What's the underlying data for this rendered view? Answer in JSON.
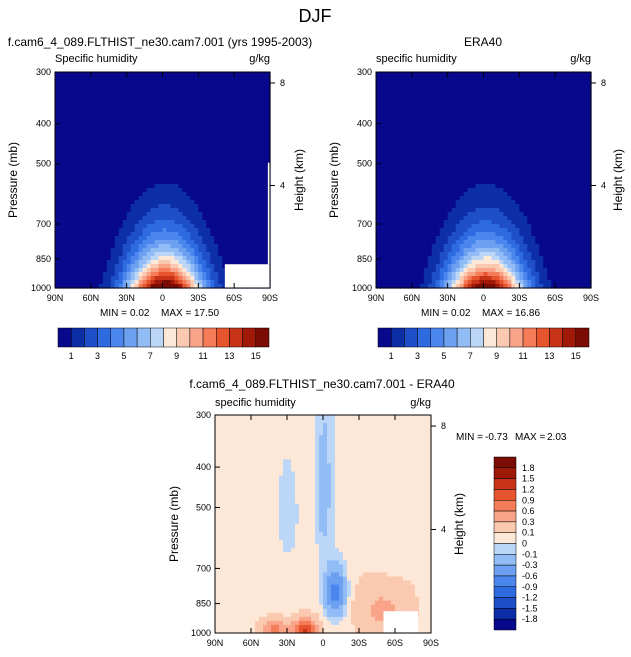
{
  "figure": {
    "title": "DJF"
  },
  "chart_data": [
    {
      "type": "contour",
      "title": "f.cam6_4_089.FLTHIST_ne30.cam7.001 (yrs 1995-2003)",
      "variable": "Specific humidity",
      "units": "g/kg",
      "xlabel": "",
      "ylabel": "Pressure (mb)",
      "ylabel_right": "Height (km)",
      "x_ticks": [
        "90N",
        "60N",
        "30N",
        "0",
        "30S",
        "60S",
        "90S"
      ],
      "y_ticks": [
        "300",
        "400",
        "500",
        "700",
        "850",
        "1000"
      ],
      "y_ticks_right": [
        "8",
        "4"
      ],
      "xlim": [
        90,
        -90
      ],
      "ylim": [
        1000,
        300
      ],
      "min_label": "MIN =",
      "min": "0.02",
      "max_label": "MAX =",
      "max": "17.50",
      "levels": [
        1,
        2,
        3,
        4,
        5,
        6,
        7,
        8,
        9,
        10,
        11,
        12,
        13,
        14,
        15
      ],
      "colorbar_labels": [
        "1",
        "3",
        "5",
        "7",
        "9",
        "11",
        "13",
        "15"
      ],
      "peak": 17.5
    },
    {
      "type": "contour",
      "title": "ERA40",
      "variable": "specific humidity",
      "units": "g/kg",
      "xlabel": "",
      "ylabel": "Pressure (mb)",
      "ylabel_right": "Height (km)",
      "x_ticks": [
        "90N",
        "60N",
        "30N",
        "0",
        "30S",
        "60S",
        "90S"
      ],
      "y_ticks": [
        "300",
        "400",
        "500",
        "700",
        "850",
        "1000"
      ],
      "y_ticks_right": [
        "8",
        "4"
      ],
      "xlim": [
        90,
        -90
      ],
      "ylim": [
        1000,
        300
      ],
      "min_label": "MIN =",
      "min": "0.02",
      "max_label": "MAX =",
      "max": "16.86",
      "levels": [
        1,
        2,
        3,
        4,
        5,
        6,
        7,
        8,
        9,
        10,
        11,
        12,
        13,
        14,
        15
      ],
      "colorbar_labels": [
        "1",
        "3",
        "5",
        "7",
        "9",
        "11",
        "13",
        "15"
      ],
      "peak": 16.86
    },
    {
      "type": "contour",
      "title": "f.cam6_4_089.FLTHIST_ne30.cam7.001 - ERA40",
      "variable": "specific humidity",
      "units": "g/kg",
      "xlabel": "",
      "ylabel": "Pressure (mb)",
      "ylabel_right": "Height (km)",
      "x_ticks": [
        "90N",
        "60N",
        "30N",
        "0",
        "30S",
        "60S",
        "90S"
      ],
      "y_ticks": [
        "300",
        "400",
        "500",
        "700",
        "850",
        "1000"
      ],
      "y_ticks_right": [
        "8",
        "4"
      ],
      "xlim": [
        90,
        -90
      ],
      "ylim": [
        1000,
        300
      ],
      "min_label": "MIN =",
      "min": "-0.73",
      "max_label": "MAX =",
      "max": "2.03",
      "levels": [
        -1.8,
        -1.5,
        -1.2,
        -0.9,
        -0.6,
        -0.3,
        -0.1,
        0,
        0.1,
        0.3,
        0.6,
        0.9,
        1.2,
        1.5,
        1.8
      ],
      "colorbar_labels": [
        "1.8",
        "1.5",
        "1.2",
        "0.9",
        "0.6",
        "0.3",
        "0.1",
        "0",
        "-0.1",
        "-0.3",
        "-0.6",
        "-0.9",
        "-1.2",
        "-1.5",
        "-1.8"
      ]
    }
  ],
  "palette": {
    "full": [
      "#08088c",
      "#0c2ea6",
      "#1e4fc8",
      "#2e6ae0",
      "#4a86ee",
      "#6ea0f2",
      "#92bcf6",
      "#bcd6f8",
      "#fde8d8",
      "#fbc8b0",
      "#f9a488",
      "#f47c58",
      "#e6552e",
      "#c83418",
      "#a01808",
      "#7a0c04"
    ],
    "mask": "#ffffff"
  }
}
